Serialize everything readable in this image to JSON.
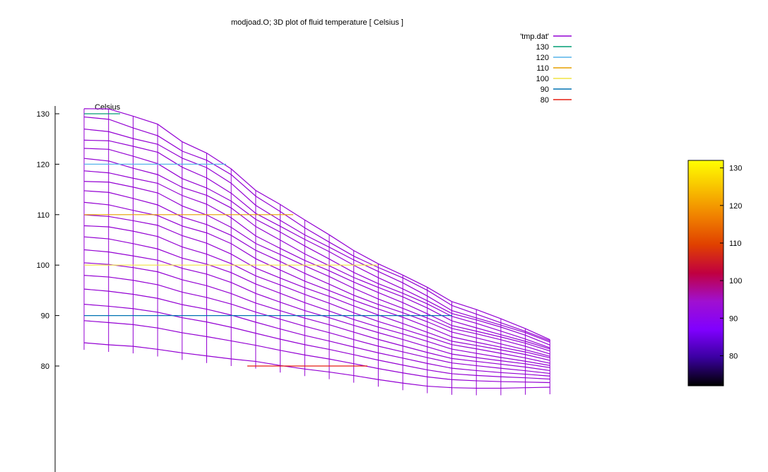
{
  "chart_data": {
    "type": "surface",
    "title": "modjoad.O; 3D plot of fluid temperature [ Celsius ]",
    "zlabel": "Celsius",
    "zlim": [
      72,
      132
    ],
    "z_ticks": [
      "80",
      "90",
      "100",
      "110",
      "120",
      "130"
    ],
    "colorbar": {
      "range": [
        72,
        132
      ],
      "ticks": [
        "80",
        "90",
        "100",
        "110",
        "120",
        "130"
      ],
      "palette": [
        "#000000",
        "#3a00a0",
        "#8000ff",
        "#a010d0",
        "#c00040",
        "#e04000",
        "#f08000",
        "#f8c000",
        "#ffff00"
      ]
    },
    "legend": {
      "position": "top-right",
      "entries": [
        {
          "label": "'tmp.dat'",
          "color": "#9400d3"
        },
        {
          "label": "130",
          "color": "#009e73"
        },
        {
          "label": "120",
          "color": "#56b4e9"
        },
        {
          "label": "110",
          "color": "#e69f00"
        },
        {
          "label": "100",
          "color": "#f0e442"
        },
        {
          "label": "90",
          "color": "#0072b2"
        },
        {
          "label": "80",
          "color": "#e51e10"
        }
      ]
    },
    "surface_color": "#9400d3",
    "rows": 20,
    "cols": 20,
    "top_profile": [
      131,
      130.7,
      129.2,
      127.8,
      124.6,
      122.5,
      119.3,
      114.8,
      111.8,
      108.7,
      105.9,
      103.0,
      100.5,
      98.2,
      95.6,
      92.6,
      91.0,
      89.3,
      87.5,
      85.4
    ],
    "bottom_profile": [
      84.6,
      84.2,
      83.9,
      83.3,
      82.6,
      82.0,
      81.4,
      80.9,
      80.1,
      79.4,
      78.8,
      78.1,
      77.3,
      76.6,
      76.0,
      75.7,
      75.6,
      75.6,
      75.7,
      75.8
    ],
    "contours": [
      {
        "level": 130,
        "color": "#009e73"
      },
      {
        "level": 120,
        "color": "#56b4e9"
      },
      {
        "level": 110,
        "color": "#e69f00"
      },
      {
        "level": 100,
        "color": "#f0e442"
      },
      {
        "level": 90,
        "color": "#0072b2"
      },
      {
        "level": 80,
        "color": "#e51e10"
      }
    ]
  }
}
